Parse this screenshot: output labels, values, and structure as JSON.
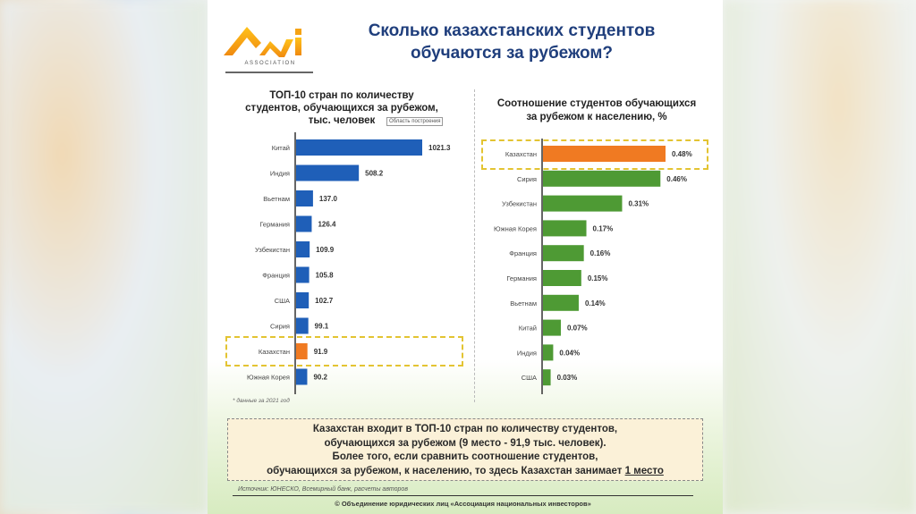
{
  "header": {
    "logo_text": "ANI",
    "logo_sub": "ASSOCIATION",
    "title_line1": "Сколько казахстанских студентов",
    "title_line2": "обучаются за рубежом?"
  },
  "tooltip": "Область построения",
  "chart_data": [
    {
      "type": "bar",
      "orientation": "horizontal",
      "title": "ТОП-10 стран по количеству студентов, обучающихся за рубежом, тыс. человек",
      "title_lines": [
        "ТОП-10 стран по количеству",
        "студентов, обучающихся за рубежом,",
        "тыс. человек"
      ],
      "categories": [
        "Китай",
        "Индия",
        "Вьетнам",
        "Германия",
        "Узбекистан",
        "Франция",
        "США",
        "Сирия",
        "Казахстан",
        "Южная Корея"
      ],
      "values": [
        1021.3,
        508.2,
        137.0,
        126.4,
        109.9,
        105.8,
        102.7,
        99.1,
        91.9,
        90.2
      ],
      "labels": [
        "1021.3",
        "508.2",
        "137.0",
        "126.4",
        "109.9",
        "105.8",
        "102.7",
        "99.1",
        "91.9",
        "90.2"
      ],
      "highlight": "Казахстан",
      "bar_color": "#1f5fb8",
      "highlight_color": "#f07a22",
      "xlim": [
        0,
        1021.3
      ],
      "note": "* данные за 2021 год"
    },
    {
      "type": "bar",
      "orientation": "horizontal",
      "title": "Соотношение студентов обучающихся за рубежом к населению, %",
      "title_lines": [
        "Соотношение студентов обучающихся",
        "за рубежом к населению, %"
      ],
      "categories": [
        "Казахстан",
        "Сирия",
        "Узбекистан",
        "Южная Корея",
        "Франция",
        "Германия",
        "Вьетнам",
        "Китай",
        "Индия",
        "США"
      ],
      "values": [
        0.48,
        0.46,
        0.31,
        0.17,
        0.16,
        0.15,
        0.14,
        0.07,
        0.04,
        0.03
      ],
      "labels": [
        "0.48%",
        "0.46%",
        "0.31%",
        "0.17%",
        "0.16%",
        "0.15%",
        "0.14%",
        "0.07%",
        "0.04%",
        "0.03%"
      ],
      "highlight": "Казахстан",
      "bar_color": "#4e9a34",
      "highlight_color": "#f07a22",
      "xlim": [
        0,
        0.48
      ]
    }
  ],
  "summary": {
    "line1": "Казахстан входит в ТОП-10 стран по количеству студентов,",
    "line2": "обучающихся за рубежом (9 место - 91,9 тыс. человек).",
    "line3": "Более того, если сравнить соотношение студентов,",
    "line4": "обучающихся за рубежом, к населению, то здесь Казахстан занимает",
    "line4_emph": "1 место"
  },
  "source": "Источник: ЮНЕСКО, Всемирный банк, расчеты авторов",
  "copyright": "© Объединение юридических лиц «Ассоциация национальных инвесторов»"
}
